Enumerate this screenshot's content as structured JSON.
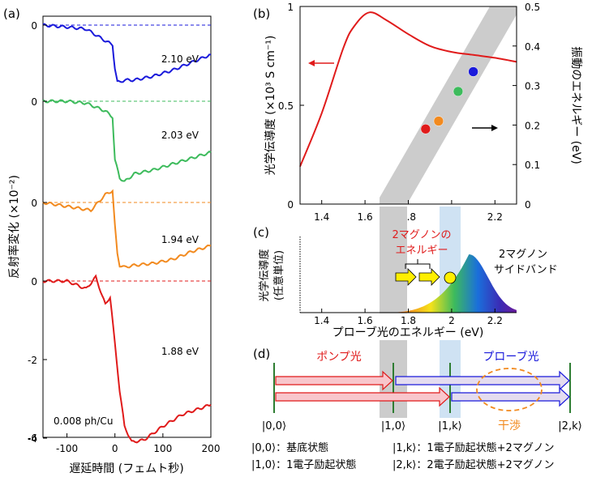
{
  "panel_labels": {
    "a": "(a)",
    "b": "(b)",
    "c": "(c)",
    "d": "(d)"
  },
  "chart_data": [
    {
      "panel": "a",
      "type": "line",
      "xlabel": "遅延時間 (フェムト秒)",
      "ylabel": "反射率変化 (×10⁻²)",
      "xlim": [
        -150,
        200
      ],
      "ylim": [
        -6,
        0.5
      ],
      "x_ticks": [
        "-100",
        "0",
        "100",
        "200"
      ],
      "y_ticks": [
        "0",
        "0",
        "0",
        "0",
        "-2",
        "-4",
        "-6"
      ],
      "annotation": "0.008 ph/Cu",
      "series": [
        {
          "name": "2.10 eV",
          "color": "#1a1adb",
          "baseline_offset": 0,
          "x": [
            -150,
            -100,
            -60,
            -20,
            -5,
            0,
            5,
            10,
            20,
            40,
            80,
            120,
            160,
            200
          ],
          "y": [
            0,
            -0.05,
            -0.1,
            -0.4,
            -0.5,
            -1.1,
            -1.45,
            -1.45,
            -1.4,
            -1.4,
            -1.3,
            -1.15,
            -0.95,
            -0.75
          ]
        },
        {
          "name": "2.03 eV",
          "color": "#3dbb5c",
          "baseline_offset": 0,
          "x": [
            -150,
            -100,
            -60,
            -20,
            -5,
            0,
            10,
            20,
            40,
            80,
            120,
            160,
            200
          ],
          "y": [
            0,
            0,
            -0.05,
            -0.25,
            -0.4,
            -1.5,
            -1.95,
            -2.05,
            -1.85,
            -1.75,
            -1.6,
            -1.45,
            -1.3
          ]
        },
        {
          "name": "1.94 eV",
          "color": "#f28a1f",
          "baseline_offset": 0,
          "x": [
            -150,
            -100,
            -50,
            -20,
            -5,
            0,
            5,
            10,
            20,
            40,
            80,
            120,
            160,
            200
          ],
          "y": [
            0,
            -0.1,
            -0.2,
            0.2,
            0.3,
            -0.6,
            -1.3,
            -1.6,
            -1.65,
            -1.6,
            -1.55,
            -1.45,
            -1.25,
            -1.1
          ]
        },
        {
          "name": "1.88 eV",
          "color": "#e01b1b",
          "baseline_offset": 0,
          "x": [
            -150,
            -100,
            -60,
            -40,
            -20,
            -10,
            0,
            10,
            20,
            35,
            60,
            100,
            140,
            200
          ],
          "y": [
            0,
            0,
            -0.2,
            0.1,
            -0.6,
            -0.4,
            -1.6,
            -2.8,
            -3.7,
            -4.1,
            -4.05,
            -3.7,
            -3.4,
            -3.15
          ]
        }
      ]
    },
    {
      "panel": "b",
      "type": "line",
      "xlabel": "",
      "ylabel": "光学伝導度 (×10³ S cm⁻¹)",
      "y2label": "振動のエネルギー (eV)",
      "xlim": [
        1.3,
        2.3
      ],
      "ylim": [
        0,
        1.0
      ],
      "y2lim": [
        0,
        0.5
      ],
      "x_ticks": [
        "1.4",
        "1.6",
        "1.8",
        "2",
        "2.2"
      ],
      "y_ticks": [
        "0",
        "0.5",
        "1"
      ],
      "y2_ticks": [
        "0",
        "0.1",
        "0.2",
        "0.3",
        "0.4",
        "0.5"
      ],
      "series": [
        {
          "name": "",
          "color": "#e01b1b",
          "x": [
            1.3,
            1.4,
            1.5,
            1.55,
            1.62,
            1.7,
            1.8,
            1.9,
            2.0,
            2.1,
            2.2,
            2.3
          ],
          "y": [
            0.19,
            0.46,
            0.79,
            0.9,
            0.97,
            0.93,
            0.86,
            0.8,
            0.77,
            0.755,
            0.74,
            0.72
          ]
        }
      ],
      "points": [
        {
          "x": 1.88,
          "y": 0.19,
          "color": "#e01b1b"
        },
        {
          "x": 1.94,
          "y": 0.21,
          "color": "#f28a1f"
        },
        {
          "x": 2.03,
          "y": 0.285,
          "color": "#3dbb5c"
        },
        {
          "x": 2.1,
          "y": 0.335,
          "color": "#1a1adb"
        }
      ]
    },
    {
      "panel": "c",
      "type": "area",
      "xlabel": "プローブ光のエネルギー (eV)",
      "ylabel": "光学伝導度\n(任意単位)",
      "xlim": [
        1.3,
        2.3
      ],
      "x_ticks": [
        "1.4",
        "1.6",
        "1.8",
        "2",
        "2.2"
      ],
      "labels": {
        "magnon_energy": "2マグノンの\nエネルギー",
        "sideband": "2マグノン\nサイドバンド"
      }
    }
  ],
  "diagram_d": {
    "pump_label": "ポンプ光",
    "probe_label": "プローブ光",
    "interference_label": "干渉",
    "states": [
      "|0,0⟩",
      "|1,0⟩",
      "|1,k⟩",
      "|2,k⟩"
    ],
    "legend": [
      "|0,0⟩：基底状態",
      "|1,0⟩：1電子励起状態",
      "|1,k⟩：1電子励起状態+2マグノン",
      "|2,k⟩：2電子励起状態+2マグノン"
    ]
  },
  "colors": {
    "red": "#e01b1b",
    "blue": "#1a1adb",
    "green": "#3dbb5c",
    "orange": "#f28a1f",
    "gray_band": "#cccccc",
    "blue_band": "#cfe2f3"
  }
}
